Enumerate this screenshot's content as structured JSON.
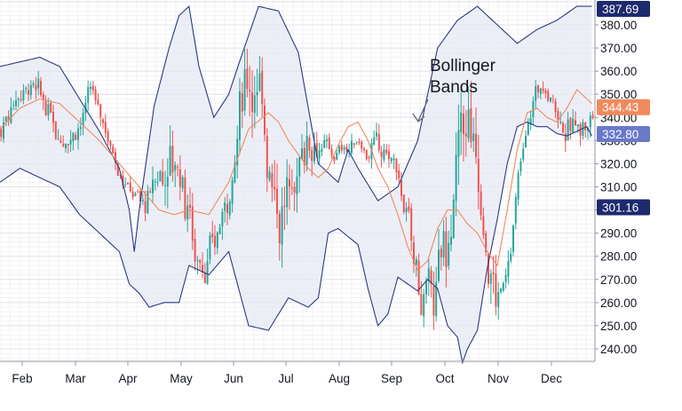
{
  "chart_data": {
    "type": "candlestick",
    "title": "",
    "annotation": {
      "lines": [
        "Bollinger",
        "Bands"
      ]
    },
    "y_axis": {
      "side": "right",
      "range": [
        233,
        390
      ],
      "ticks": [
        "240.00",
        "250.00",
        "260.00",
        "270.00",
        "280.00",
        "290.00",
        "300.00",
        "310.00",
        "320.00",
        "330.00",
        "340.00",
        "350.00",
        "360.00",
        "370.00",
        "380.00"
      ]
    },
    "x_axis": {
      "labels": [
        "Feb",
        "Mar",
        "Apr",
        "May",
        "Jun",
        "Jul",
        "Aug",
        "Sep",
        "Oct",
        "Nov",
        "Dec"
      ]
    },
    "price_tags": [
      {
        "label": "387.69",
        "value": 387.69,
        "color": "#1e2a6e"
      },
      {
        "label": "344.43",
        "value": 344.43,
        "color": "#f08a5d"
      },
      {
        "label": "332.80",
        "value": 332.8,
        "color": "#6a79c8"
      },
      {
        "label": "301.16",
        "value": 301.16,
        "color": "#1e2a6e"
      }
    ],
    "colors": {
      "up": "#26a69a",
      "down": "#ef5350",
      "band": "#2b3a80",
      "band_fill": "#e5e8f3",
      "basis": "#f08a5d",
      "grid": "#e8e8ec"
    },
    "series": [
      {
        "name": "Bollinger upper",
        "x": [
          0,
          8,
          16,
          24,
          32,
          40,
          48,
          52,
          54,
          56,
          62,
          68,
          72,
          76,
          80,
          86,
          92,
          96,
          104,
          112,
          120,
          128,
          136,
          140,
          144,
          152,
          160,
          168,
          176,
          184,
          192,
          200,
          208,
          216,
          224,
          232,
          238
        ],
        "values": [
          362,
          364,
          366,
          362,
          348,
          334,
          318,
          300,
          282,
          300,
          345,
          370,
          384,
          388,
          362,
          340,
          350,
          363,
          388,
          386,
          368,
          320,
          312,
          326,
          318,
          304,
          310,
          330,
          370,
          382,
          388,
          380,
          372,
          378,
          382,
          388,
          388
        ]
      },
      {
        "name": "Bollinger basis",
        "x": [
          0,
          8,
          16,
          24,
          32,
          40,
          48,
          56,
          64,
          70,
          76,
          84,
          92,
          100,
          108,
          112,
          116,
          120,
          124,
          128,
          132,
          136,
          140,
          144,
          148,
          152,
          156,
          160,
          164,
          168,
          172,
          176,
          180,
          184,
          188,
          192,
          196,
          200,
          204,
          208,
          212,
          216,
          220,
          224,
          228,
          232,
          236,
          238
        ],
        "values": [
          335,
          344,
          348,
          346,
          338,
          330,
          320,
          310,
          300,
          298,
          300,
          298,
          312,
          335,
          342,
          338,
          330,
          324,
          318,
          314,
          318,
          328,
          336,
          338,
          330,
          318,
          310,
          298,
          284,
          274,
          278,
          292,
          300,
          300,
          294,
          290,
          282,
          276,
          300,
          326,
          342,
          344,
          340,
          338,
          344,
          352,
          348,
          346
        ]
      },
      {
        "name": "Bollinger lower",
        "x": [
          0,
          8,
          16,
          24,
          32,
          40,
          48,
          52,
          56,
          60,
          66,
          72,
          76,
          84,
          92,
          100,
          108,
          116,
          124,
          128,
          132,
          136,
          144,
          148,
          152,
          156,
          160,
          164,
          168,
          172,
          176,
          180,
          184,
          186,
          188,
          192,
          196,
          200,
          204,
          208,
          212,
          216,
          220,
          224,
          228,
          232,
          236,
          238
        ],
        "values": [
          312,
          318,
          314,
          310,
          298,
          290,
          282,
          268,
          264,
          258,
          260,
          260,
          276,
          272,
          282,
          250,
          248,
          262,
          258,
          262,
          290,
          292,
          285,
          266,
          250,
          255,
          271,
          268,
          265,
          270,
          266,
          250,
          245,
          234,
          240,
          248,
          275,
          296,
          320,
          336,
          338,
          336,
          336,
          333,
          332,
          334,
          336,
          332
        ]
      }
    ]
  }
}
